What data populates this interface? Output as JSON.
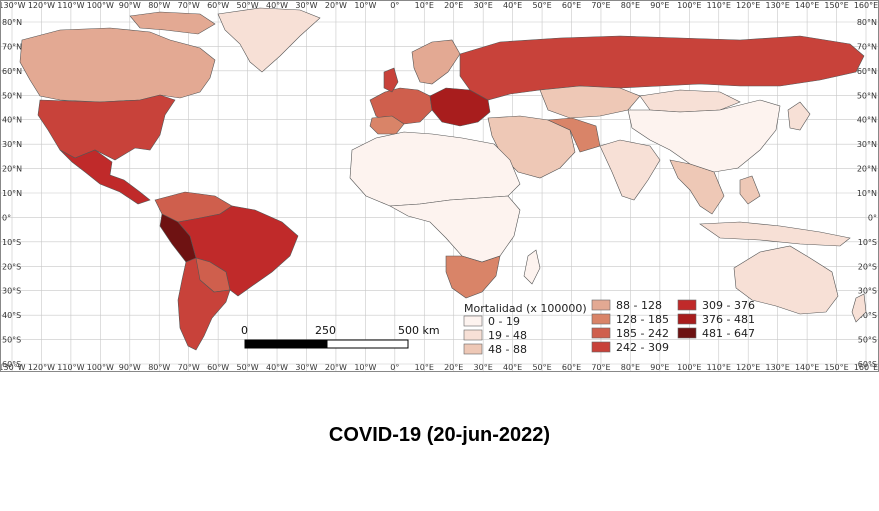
{
  "caption": "COVID-19 (20-jun-2022)",
  "legend": {
    "title": "Mortalidad (x 100000)",
    "classes": [
      {
        "label": "0 - 19",
        "color": "#fdf3ef"
      },
      {
        "label": "19 - 48",
        "color": "#f7e0d6"
      },
      {
        "label": "48 - 88",
        "color": "#eec8b6"
      },
      {
        "label": "88 - 128",
        "color": "#e3a993"
      },
      {
        "label": "128 - 185",
        "color": "#d98468"
      },
      {
        "label": "185 - 242",
        "color": "#cf5f4d"
      },
      {
        "label": "242 - 309",
        "color": "#c8423a"
      },
      {
        "label": "309 - 376",
        "color": "#c02a2a"
      },
      {
        "label": "376 - 481",
        "color": "#a81d1d"
      },
      {
        "label": "481 - 647",
        "color": "#6e1212"
      }
    ]
  },
  "scale_bar": {
    "labels": [
      "0",
      "250",
      "500 km"
    ]
  },
  "axes": {
    "lon_labels": [
      "130°W",
      "120°W",
      "110°W",
      "100°W",
      "90°W",
      "80°W",
      "70°W",
      "60°W",
      "50°W",
      "40°W",
      "30°W",
      "20°W",
      "10°W",
      "0°",
      "10°E",
      "20°E",
      "30°E",
      "40°E",
      "50°E",
      "60°E",
      "70°E",
      "80°E",
      "90°E",
      "100°E",
      "110°E",
      "120°E",
      "130°E",
      "140°E",
      "150°E",
      "160°E"
    ],
    "lat_labels": [
      "80°N",
      "70°N",
      "60°N",
      "50°N",
      "40°N",
      "30°N",
      "20°N",
      "10°N",
      "0°",
      "10°S",
      "20°S",
      "30°S",
      "40°S",
      "50°S",
      "60°S"
    ],
    "gridlines": true
  },
  "colors": {
    "ocean": "#ffffff",
    "grid": "#c8c8c8",
    "border": "#555555"
  }
}
